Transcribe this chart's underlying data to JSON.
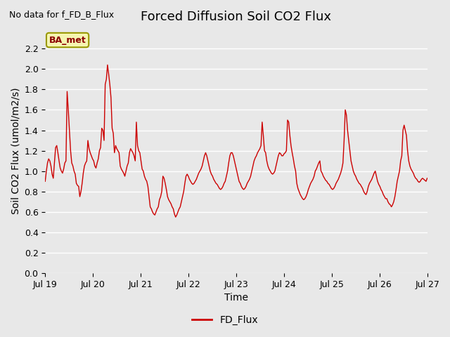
{
  "title": "Forced Diffusion Soil CO2 Flux",
  "ylabel": "Soil CO2 Flux (umol/m2/s)",
  "xlabel": "Time",
  "top_left_text": "No data for f_FD_B_Flux",
  "legend_label": "FD_Flux",
  "annotation_box": "BA_met",
  "ylim": [
    0.0,
    2.4
  ],
  "yticks": [
    0.0,
    0.2,
    0.4,
    0.6,
    0.8,
    1.0,
    1.2,
    1.4,
    1.6,
    1.8,
    2.0,
    2.2
  ],
  "line_color": "#cc0000",
  "plot_bg_color": "#e8e8e8",
  "fig_bg_color": "#e8e8e8",
  "title_fontsize": 13,
  "label_fontsize": 10,
  "tick_fontsize": 9,
  "x_start_day": 19,
  "x_end_day": 27,
  "x_tick_days": [
    19,
    20,
    21,
    22,
    23,
    24,
    25,
    26,
    27
  ],
  "x_tick_labels": [
    "Jul 19",
    "Jul 20",
    "Jul 21",
    "Jul 22",
    "Jul 23",
    "Jul 24",
    "Jul 25",
    "Jul 26",
    "Jul 27"
  ],
  "flux_data": [
    0.9,
    1.0,
    1.08,
    1.12,
    1.1,
    1.05,
    0.97,
    0.93,
    1.08,
    1.23,
    1.25,
    1.18,
    1.1,
    1.03,
    1.0,
    0.98,
    1.02,
    1.08,
    1.1,
    1.78,
    1.6,
    1.4,
    1.2,
    1.08,
    1.05,
    1.0,
    0.97,
    0.88,
    0.86,
    0.85,
    0.75,
    0.8,
    0.88,
    0.98,
    1.05,
    1.08,
    1.1,
    1.3,
    1.22,
    1.18,
    1.15,
    1.12,
    1.1,
    1.05,
    1.03,
    1.08,
    1.12,
    1.2,
    1.23,
    1.42,
    1.4,
    1.3,
    1.85,
    1.9,
    2.04,
    1.95,
    1.85,
    1.72,
    1.42,
    1.37,
    1.18,
    1.25,
    1.22,
    1.2,
    1.18,
    1.05,
    1.02,
    1.0,
    0.98,
    0.95,
    1.0,
    1.05,
    1.08,
    1.18,
    1.22,
    1.2,
    1.18,
    1.15,
    1.1,
    1.48,
    1.25,
    1.2,
    1.18,
    1.1,
    1.02,
    1.0,
    0.95,
    0.92,
    0.9,
    0.85,
    0.75,
    0.65,
    0.63,
    0.6,
    0.58,
    0.57,
    0.6,
    0.63,
    0.65,
    0.72,
    0.75,
    0.8,
    0.95,
    0.93,
    0.88,
    0.82,
    0.75,
    0.72,
    0.7,
    0.68,
    0.65,
    0.63,
    0.58,
    0.55,
    0.57,
    0.6,
    0.63,
    0.65,
    0.7,
    0.75,
    0.8,
    0.88,
    0.95,
    0.97,
    0.95,
    0.92,
    0.9,
    0.88,
    0.87,
    0.88,
    0.9,
    0.92,
    0.95,
    0.98,
    1.0,
    1.02,
    1.05,
    1.1,
    1.15,
    1.18,
    1.15,
    1.1,
    1.05,
    1.0,
    0.97,
    0.95,
    0.92,
    0.9,
    0.88,
    0.87,
    0.85,
    0.83,
    0.82,
    0.83,
    0.85,
    0.88,
    0.9,
    0.95,
    1.0,
    1.08,
    1.15,
    1.18,
    1.18,
    1.15,
    1.1,
    1.05,
    1.0,
    0.95,
    0.9,
    0.88,
    0.85,
    0.83,
    0.82,
    0.83,
    0.85,
    0.88,
    0.9,
    0.92,
    0.95,
    1.0,
    1.05,
    1.1,
    1.13,
    1.15,
    1.18,
    1.2,
    1.22,
    1.25,
    1.48,
    1.35,
    1.2,
    1.18,
    1.1,
    1.05,
    1.02,
    1.0,
    0.98,
    0.97,
    0.98,
    1.0,
    1.05,
    1.1,
    1.15,
    1.18,
    1.17,
    1.15,
    1.15,
    1.17,
    1.18,
    1.2,
    1.5,
    1.48,
    1.35,
    1.25,
    1.18,
    1.12,
    1.05,
    1.0,
    0.88,
    0.83,
    0.8,
    0.77,
    0.75,
    0.73,
    0.72,
    0.73,
    0.75,
    0.78,
    0.82,
    0.85,
    0.88,
    0.9,
    0.92,
    0.95,
    1.0,
    1.02,
    1.05,
    1.08,
    1.1,
    1.0,
    0.98,
    0.95,
    0.93,
    0.91,
    0.9,
    0.88,
    0.87,
    0.85,
    0.83,
    0.82,
    0.83,
    0.85,
    0.88,
    0.9,
    0.92,
    0.95,
    0.98,
    1.02,
    1.08,
    1.3,
    1.6,
    1.55,
    1.4,
    1.3,
    1.2,
    1.1,
    1.05,
    1.0,
    0.97,
    0.95,
    0.92,
    0.9,
    0.88,
    0.87,
    0.85,
    0.83,
    0.8,
    0.78,
    0.77,
    0.8,
    0.85,
    0.88,
    0.9,
    0.92,
    0.95,
    0.98,
    1.0,
    0.95,
    0.9,
    0.87,
    0.85,
    0.82,
    0.8,
    0.77,
    0.75,
    0.73,
    0.73,
    0.7,
    0.68,
    0.67,
    0.65,
    0.67,
    0.7,
    0.75,
    0.82,
    0.9,
    0.95,
    1.0,
    1.1,
    1.15,
    1.4,
    1.45,
    1.4,
    1.35,
    1.2,
    1.1,
    1.05,
    1.02,
    1.0,
    0.98,
    0.95,
    0.93,
    0.92,
    0.9,
    0.89,
    0.9,
    0.92,
    0.93,
    0.92,
    0.91,
    0.9,
    0.93
  ]
}
